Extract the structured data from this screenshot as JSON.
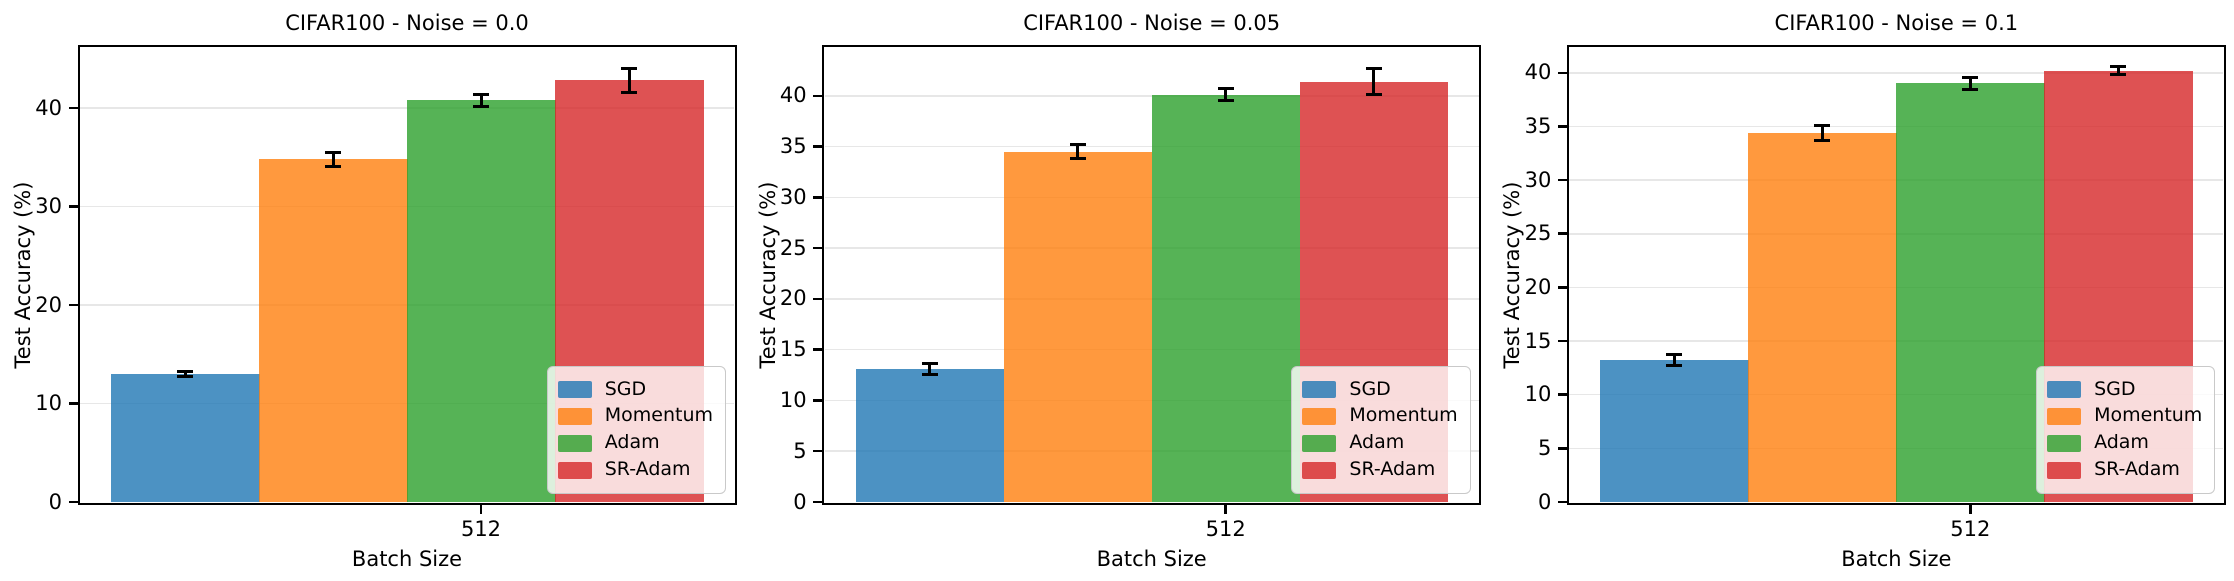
{
  "figure": {
    "background": "#ffffff",
    "bar_alpha": 0.8,
    "grid_color": "#b0b0b0",
    "grid_alpha": 0.3,
    "errorbar_color": "#000000",
    "legend_labels": [
      "SGD",
      "Momentum",
      "Adam",
      "SR-Adam"
    ],
    "series_colors": {
      "SGD": "#1f77b4",
      "Momentum": "#ff7f0e",
      "Adam": "#2ca02c",
      "SR-Adam": "#d62728"
    }
  },
  "chart_data": [
    {
      "type": "bar",
      "title": "CIFAR100 - Noise = 0.0",
      "xlabel": "Batch Size",
      "ylabel": "Test Accuracy (%)",
      "categories": [
        "512"
      ],
      "series": [
        {
          "name": "SGD",
          "values": [
            13.0
          ],
          "errors": [
            0.3
          ],
          "color": "#1f77b4"
        },
        {
          "name": "Momentum",
          "values": [
            34.8
          ],
          "errors": [
            0.7
          ],
          "color": "#ff7f0e"
        },
        {
          "name": "Adam",
          "values": [
            40.8
          ],
          "errors": [
            0.6
          ],
          "color": "#2ca02c"
        },
        {
          "name": "SR-Adam",
          "values": [
            42.8
          ],
          "errors": [
            1.2
          ],
          "color": "#d62728"
        }
      ],
      "ylim": [
        0,
        46.2
      ],
      "yticks": [
        0,
        10,
        20,
        30,
        40
      ],
      "grid": true,
      "legend_position": "lower right"
    },
    {
      "type": "bar",
      "title": "CIFAR100 - Noise = 0.05",
      "xlabel": "Batch Size",
      "ylabel": "Test Accuracy (%)",
      "categories": [
        "512"
      ],
      "series": [
        {
          "name": "SGD",
          "values": [
            13.1
          ],
          "errors": [
            0.5
          ],
          "color": "#1f77b4"
        },
        {
          "name": "Momentum",
          "values": [
            34.5
          ],
          "errors": [
            0.7
          ],
          "color": "#ff7f0e"
        },
        {
          "name": "Adam",
          "values": [
            40.1
          ],
          "errors": [
            0.6
          ],
          "color": "#2ca02c"
        },
        {
          "name": "SR-Adam",
          "values": [
            41.4
          ],
          "errors": [
            1.3
          ],
          "color": "#d62728"
        }
      ],
      "ylim": [
        0,
        44.8
      ],
      "yticks": [
        0,
        5,
        10,
        15,
        20,
        25,
        30,
        35,
        40
      ],
      "grid": true,
      "legend_position": "lower right"
    },
    {
      "type": "bar",
      "title": "CIFAR100 - Noise = 0.1",
      "xlabel": "Batch Size",
      "ylabel": "Test Accuracy (%)",
      "categories": [
        "512"
      ],
      "series": [
        {
          "name": "SGD",
          "values": [
            13.2
          ],
          "errors": [
            0.5
          ],
          "color": "#1f77b4"
        },
        {
          "name": "Momentum",
          "values": [
            34.4
          ],
          "errors": [
            0.7
          ],
          "color": "#ff7f0e"
        },
        {
          "name": "Adam",
          "values": [
            39.0
          ],
          "errors": [
            0.6
          ],
          "color": "#2ca02c"
        },
        {
          "name": "SR-Adam",
          "values": [
            40.2
          ],
          "errors": [
            0.4
          ],
          "color": "#d62728"
        }
      ],
      "ylim": [
        0,
        42.4
      ],
      "yticks": [
        0,
        5,
        10,
        15,
        20,
        25,
        30,
        35,
        40
      ],
      "grid": true,
      "legend_position": "lower right"
    }
  ]
}
